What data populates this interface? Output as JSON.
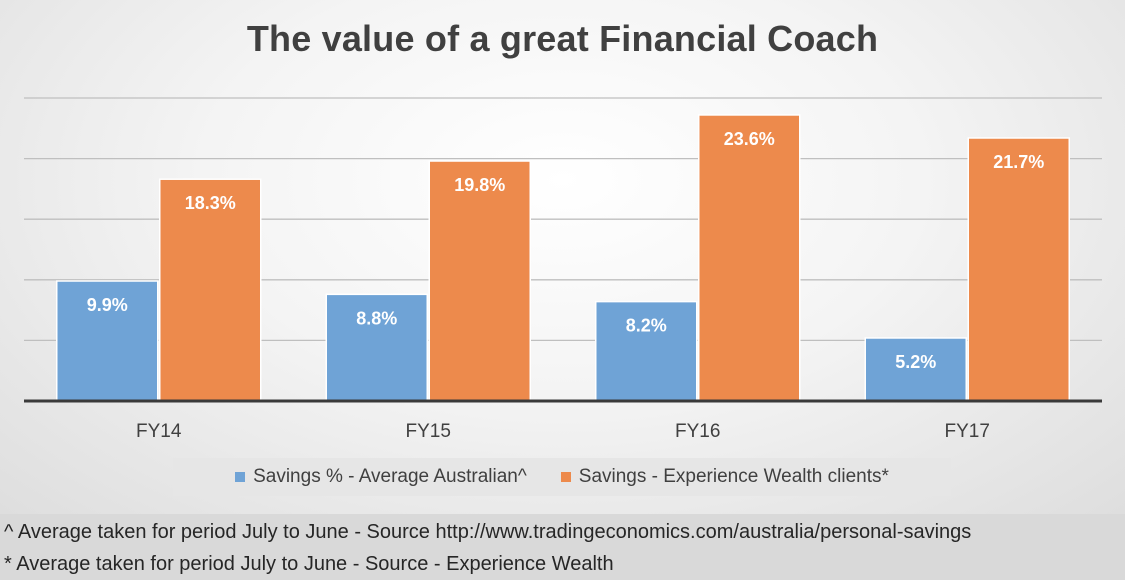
{
  "chart_data": {
    "type": "bar",
    "title": "The value of a great Financial Coach",
    "categories": [
      "FY14",
      "FY15",
      "FY16",
      "FY17"
    ],
    "series": [
      {
        "name": "Savings % - Average Australian^",
        "values": [
          9.9,
          8.8,
          8.2,
          5.2
        ],
        "labels": [
          "9.9%",
          "8.8%",
          "8.2%",
          "5.2%"
        ],
        "color": "#6fa3d6"
      },
      {
        "name": "Savings - Experience Wealth clients*",
        "values": [
          18.3,
          19.8,
          23.6,
          21.7
        ],
        "labels": [
          "18.3%",
          "19.8%",
          "23.6%",
          "21.7%"
        ],
        "color": "#ed8a4c"
      }
    ],
    "ylim": [
      0,
      25
    ],
    "grid": true,
    "legend": "bottom"
  },
  "footnotes": [
    "^ Average taken for period July to June - Source http://www.tradingeconomics.com/australia/personal-savings",
    "* Average taken for period July to June - Source - Experience Wealth"
  ]
}
